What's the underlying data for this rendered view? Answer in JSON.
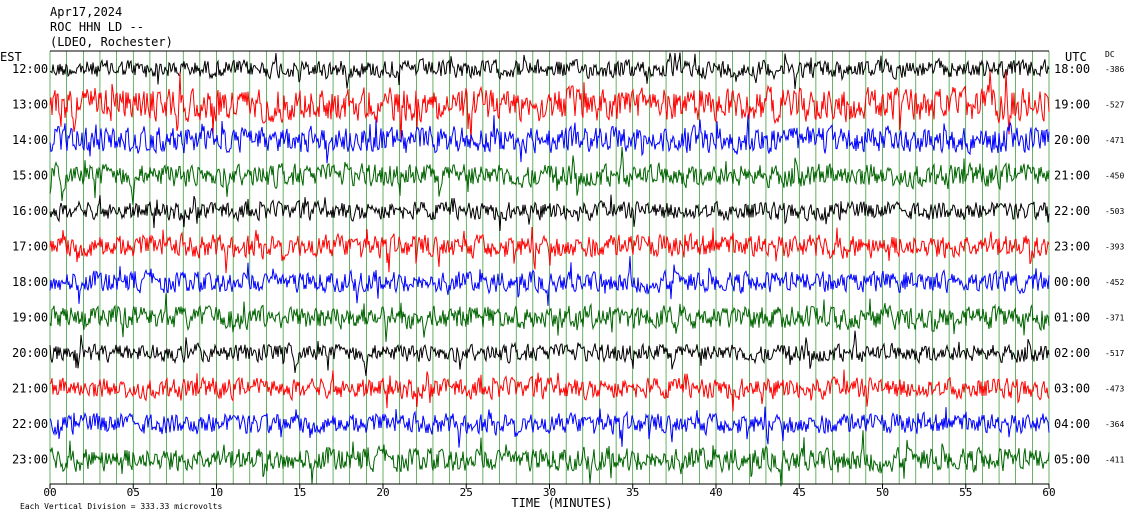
{
  "header": {
    "date": "Apr17,2024",
    "station": "ROC HHN LD --",
    "location": "(LDEO, Rochester)"
  },
  "left_axis_label": "EST",
  "right_axis_label": "UTC",
  "dc_label": "DC",
  "footer": {
    "scale_note": "Each Vertical Division =  333.33 microvolts",
    "xlabel": "TIME (MINUTES)"
  },
  "colors": {
    "black": "#000000",
    "red": "#ff0000",
    "blue": "#0000ff",
    "green": "#006400",
    "grid": "#008000"
  },
  "chart_data": {
    "type": "line",
    "xlabel": "TIME (MINUTES)",
    "xlim": [
      0,
      60
    ],
    "x_ticks": [
      "00",
      "05",
      "10",
      "15",
      "20",
      "25",
      "30",
      "35",
      "40",
      "45",
      "50",
      "55",
      "60"
    ],
    "color_cycle": [
      "black",
      "red",
      "blue",
      "green"
    ],
    "series": [
      {
        "est": "12:00",
        "utc": "18:00",
        "dc": "-386",
        "color": "black",
        "amplitude": 0.35
      },
      {
        "est": "13:00",
        "utc": "19:00",
        "dc": "-527",
        "color": "red",
        "amplitude": 0.65
      },
      {
        "est": "14:00",
        "utc": "20:00",
        "dc": "-471",
        "color": "blue",
        "amplitude": 0.5
      },
      {
        "est": "15:00",
        "utc": "21:00",
        "dc": "-450",
        "color": "green",
        "amplitude": 0.45
      },
      {
        "est": "16:00",
        "utc": "22:00",
        "dc": "-503",
        "color": "black",
        "amplitude": 0.35
      },
      {
        "est": "17:00",
        "utc": "23:00",
        "dc": "-393",
        "color": "red",
        "amplitude": 0.45
      },
      {
        "est": "18:00",
        "utc": "00:00",
        "dc": "-452",
        "color": "blue",
        "amplitude": 0.4
      },
      {
        "est": "19:00",
        "utc": "01:00",
        "dc": "-371",
        "color": "green",
        "amplitude": 0.45
      },
      {
        "est": "20:00",
        "utc": "02:00",
        "dc": "-517",
        "color": "black",
        "amplitude": 0.35
      },
      {
        "est": "21:00",
        "utc": "03:00",
        "dc": "-473",
        "color": "red",
        "amplitude": 0.4
      },
      {
        "est": "22:00",
        "utc": "04:00",
        "dc": "-364",
        "color": "blue",
        "amplitude": 0.4
      },
      {
        "est": "23:00",
        "utc": "05:00",
        "dc": "-411",
        "color": "green",
        "amplitude": 0.45
      }
    ]
  }
}
